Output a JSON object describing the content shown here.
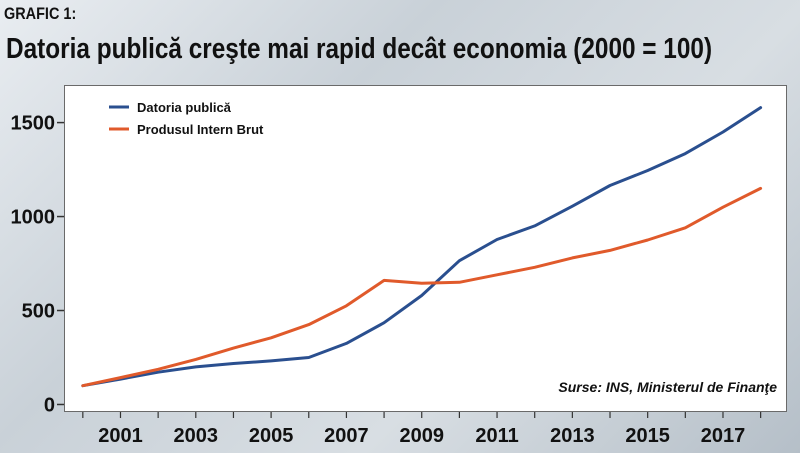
{
  "header": {
    "label": "GRAFIC 1:",
    "title": "Datoria publică creşte mai rapid decât economia (2000 = 100)"
  },
  "source_note": "Surse: INS, Ministerul de Finanţe",
  "chart_data": {
    "type": "line",
    "title": "Datoria publică creşte mai rapid decât economia (2000 = 100)",
    "xlabel": "",
    "ylabel": "",
    "x": [
      2000,
      2001,
      2002,
      2003,
      2004,
      2005,
      2006,
      2007,
      2008,
      2009,
      2010,
      2011,
      2012,
      2013,
      2014,
      2015,
      2016,
      2017,
      2018
    ],
    "x_tick_labels": [
      "2001",
      "2003",
      "2005",
      "2007",
      "2009",
      "2011",
      "2013",
      "2015",
      "2017"
    ],
    "y_tick_labels": [
      "0",
      "500",
      "1000",
      "1500"
    ],
    "ylim": [
      -40,
      1700
    ],
    "grid": false,
    "legend_position": "top-left",
    "series": [
      {
        "name": "Datoria publică",
        "color": "#2a4f8f",
        "values": [
          100,
          135,
          172,
          200,
          218,
          232,
          250,
          325,
          435,
          580,
          765,
          878,
          950,
          1055,
          1165,
          1245,
          1335,
          1450,
          1580
        ]
      },
      {
        "name": "Produsul Intern Brut",
        "color": "#e05a2b",
        "values": [
          100,
          143,
          187,
          240,
          300,
          355,
          425,
          525,
          660,
          645,
          650,
          690,
          730,
          780,
          820,
          875,
          940,
          1050,
          1150
        ]
      }
    ]
  }
}
